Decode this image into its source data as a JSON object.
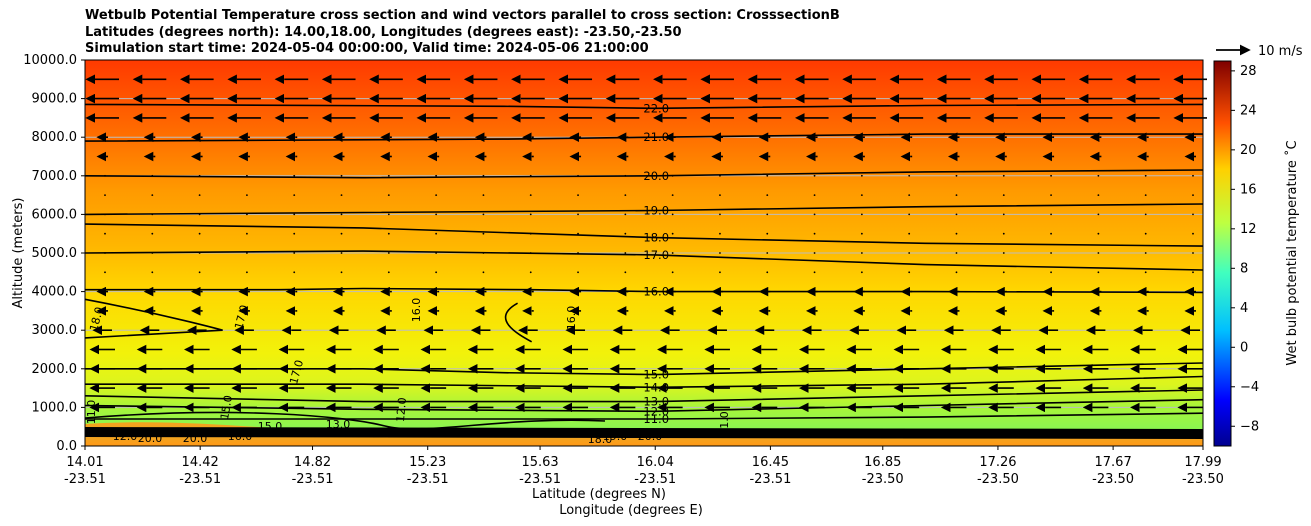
{
  "chart_data": {
    "type": "contourf",
    "title_lines": [
      "Wetbulb Potential Temperature cross section and wind vectors parallel to cross section: CrosssectionB",
      "Latitudes (degrees north): 14.00,18.00, Longitudes (degrees east): -23.50,-23.50",
      "Simulation start time: 2024-05-04 00:00:00, Valid time: 2024-05-06 21:00:00"
    ],
    "ylabel": "Altitude (meters)",
    "xlabel_lat": "Latitude (degrees N)",
    "xlabel_lon": "Longitude (degrees E)",
    "ylim": [
      0,
      10000
    ],
    "yticks": [
      "0.0",
      "1000.0",
      "2000.0",
      "3000.0",
      "4000.0",
      "5000.0",
      "6000.0",
      "7000.0",
      "8000.0",
      "9000.0",
      "10000.0"
    ],
    "xlim": [
      14.01,
      17.99
    ],
    "xticks": [
      {
        "lat": "14.01",
        "lon": "-23.51",
        "v": 14.01
      },
      {
        "lat": "14.42",
        "lon": "-23.51",
        "v": 14.42
      },
      {
        "lat": "14.82",
        "lon": "-23.51",
        "v": 14.82
      },
      {
        "lat": "15.23",
        "lon": "-23.51",
        "v": 15.23
      },
      {
        "lat": "15.63",
        "lon": "-23.51",
        "v": 15.63
      },
      {
        "lat": "16.04",
        "lon": "-23.51",
        "v": 16.04
      },
      {
        "lat": "16.45",
        "lon": "-23.51",
        "v": 16.45
      },
      {
        "lat": "16.85",
        "lon": "-23.50",
        "v": 16.85
      },
      {
        "lat": "17.26",
        "lon": "-23.50",
        "v": 17.26
      },
      {
        "lat": "17.67",
        "lon": "-23.50",
        "v": 17.67
      },
      {
        "lat": "17.99",
        "lon": "-23.50",
        "v": 17.99
      }
    ],
    "colorbar": {
      "label": "Wet bulb potential temperature $^\\circ$C",
      "range": [
        -10,
        29
      ],
      "ticks": [
        "-8",
        "-4",
        "0",
        "4",
        "8",
        "12",
        "16",
        "20",
        "24",
        "28"
      ],
      "tick_values": [
        -8,
        -4,
        0,
        4,
        8,
        12,
        16,
        20,
        24,
        28
      ]
    },
    "quiver_key": "10 m/s",
    "contours": [
      {
        "level": 22.0,
        "label": "22.0",
        "x": [
          14.01,
          15.5,
          16.04,
          17.0,
          17.99
        ],
        "y": [
          8850,
          8800,
          8750,
          8820,
          8850
        ]
      },
      {
        "level": 21.0,
        "label": "21.0",
        "x": [
          14.01,
          15.5,
          16.04,
          17.0,
          17.99
        ],
        "y": [
          7900,
          7950,
          8000,
          8080,
          8080
        ]
      },
      {
        "level": 20.0,
        "label": "20.0",
        "x": [
          14.01,
          15.0,
          16.04,
          17.0,
          17.99
        ],
        "y": [
          7000,
          6950,
          7000,
          7100,
          7150
        ]
      },
      {
        "level": 19.0,
        "label": "19.0",
        "x": [
          14.01,
          15.0,
          16.04,
          17.0,
          17.99
        ],
        "y": [
          6000,
          6050,
          6100,
          6200,
          6270
        ]
      },
      {
        "level": 18.0,
        "label": "18.0",
        "x": [
          14.01,
          15.0,
          16.04,
          17.0,
          17.99
        ],
        "y": [
          5750,
          5650,
          5400,
          5250,
          5180
        ]
      },
      {
        "level": 17.0,
        "label": "17.0",
        "x": [
          14.01,
          15.0,
          16.04,
          17.0,
          17.99
        ],
        "y": [
          5000,
          5050,
          4950,
          4700,
          4560
        ]
      },
      {
        "level": 16.0,
        "label": "16.0",
        "x": [
          14.01,
          14.7,
          15.0,
          15.6,
          16.04,
          17.0,
          17.99
        ],
        "y": [
          4050,
          4050,
          4080,
          4050,
          4000,
          4000,
          3980
        ]
      },
      {
        "level": 15.0,
        "label": "15.0",
        "x": [
          14.01,
          15.0,
          15.5,
          16.04,
          17.0,
          17.99
        ],
        "y": [
          2000,
          2000,
          1900,
          1850,
          2000,
          2150
        ]
      },
      {
        "level": 14.0,
        "label": "14.0",
        "x": [
          14.01,
          15.0,
          16.04,
          17.0,
          17.99
        ],
        "y": [
          1600,
          1600,
          1520,
          1600,
          1800
        ]
      },
      {
        "level": 13.0,
        "label": "13.0",
        "x": [
          14.01,
          15.0,
          16.04,
          17.0,
          17.99
        ],
        "y": [
          1300,
          1150,
          1150,
          1300,
          1450
        ]
      },
      {
        "level": 12.0,
        "label": "12.0",
        "x": [
          14.01,
          15.0,
          16.04,
          17.0,
          17.99
        ],
        "y": [
          1050,
          950,
          900,
          1050,
          1200
        ]
      },
      {
        "level": 11.0,
        "label": "11.0",
        "x": [
          14.01,
          15.0,
          16.04,
          17.0,
          17.99
        ],
        "y": [
          700,
          700,
          700,
          750,
          850
        ]
      }
    ],
    "extra_labels": [
      "18.0",
      "17.0",
      "16.0",
      "16.0",
      "17.0",
      "15.0",
      "15.0",
      "16.0",
      "12.0",
      "11.0",
      "13.0",
      "20.0",
      "20.0",
      "1.0",
      "12.0",
      "18.0",
      "19.0",
      "20.0"
    ]
  }
}
